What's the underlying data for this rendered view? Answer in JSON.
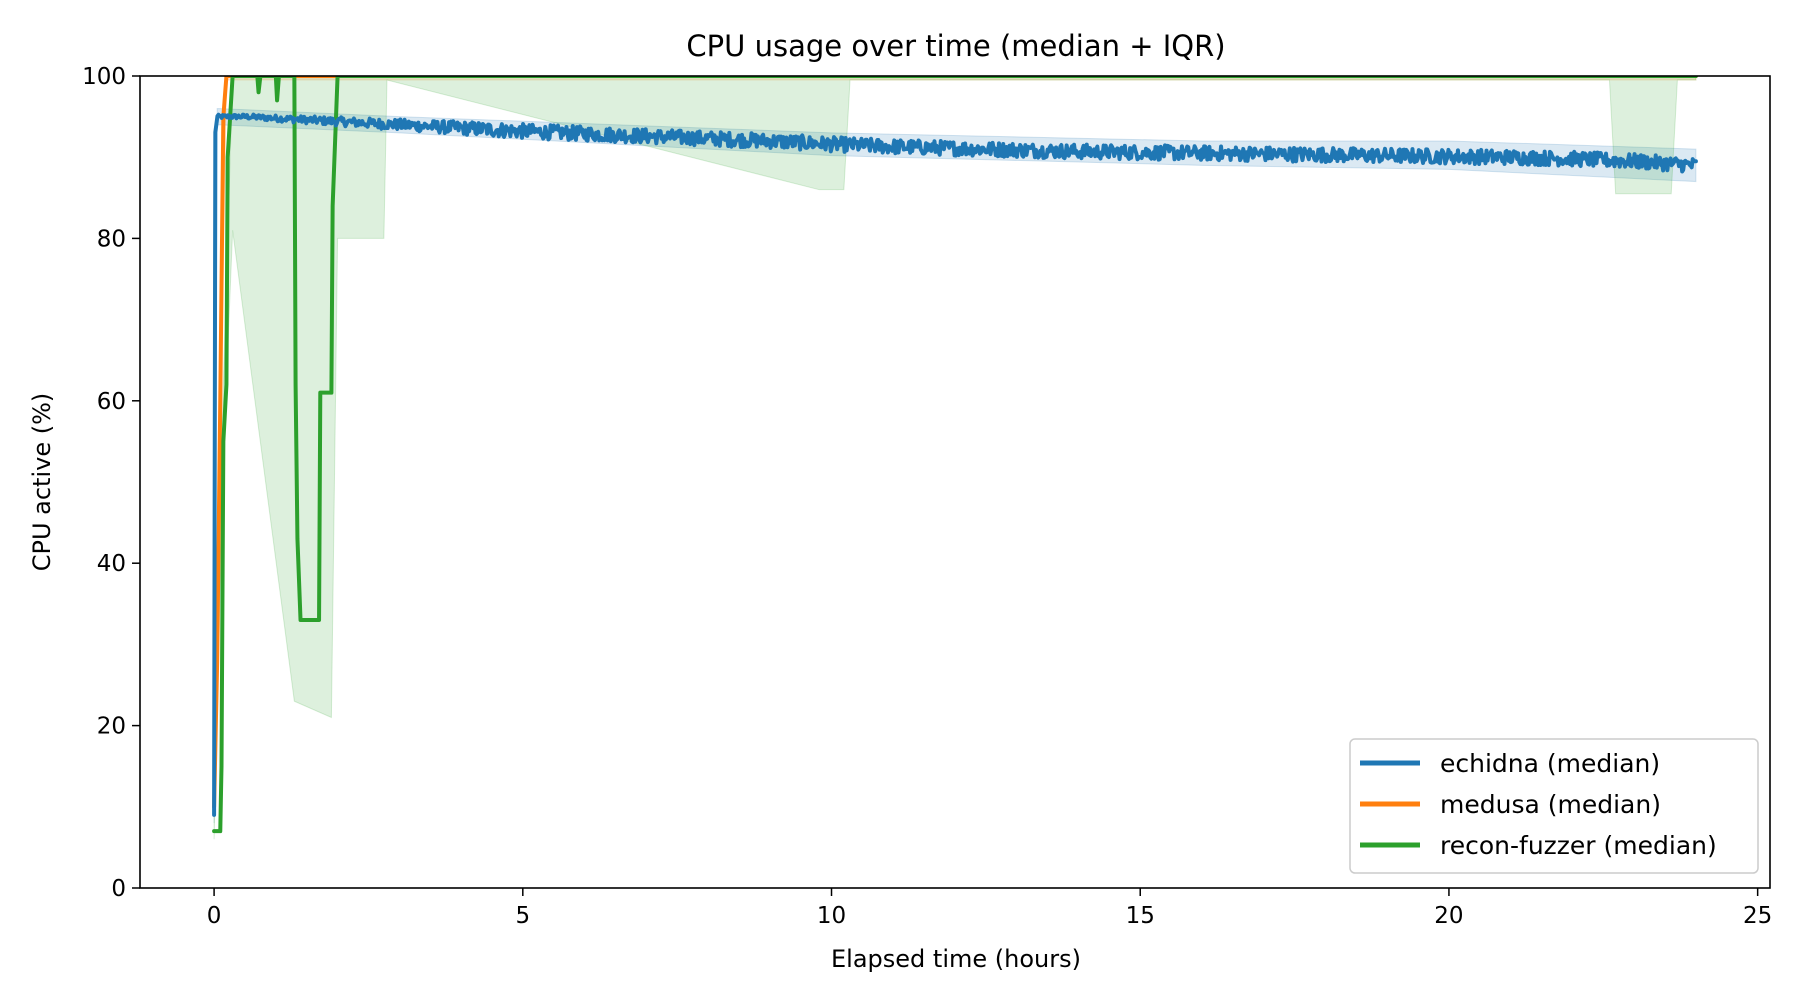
{
  "chart_data": {
    "type": "line",
    "title": "CPU usage over time (median + IQR)",
    "xlabel": "Elapsed time (hours)",
    "ylabel": "CPU active (%)",
    "xlim": [
      -1.2,
      25.2
    ],
    "ylim": [
      0,
      100
    ],
    "xticks": [
      0,
      5,
      10,
      15,
      20,
      25
    ],
    "yticks": [
      0,
      20,
      40,
      60,
      80,
      100
    ],
    "grid": false,
    "legend_position": "lower-right",
    "series": [
      {
        "name": "echidna (median)",
        "color": "#1f77b4",
        "median": [
          [
            0.0,
            9
          ],
          [
            0.02,
            93
          ],
          [
            0.05,
            95
          ],
          [
            0.5,
            95
          ],
          [
            1,
            94.8
          ],
          [
            2,
            94.4
          ],
          [
            3,
            94
          ],
          [
            4,
            93.6
          ],
          [
            5,
            93.2
          ],
          [
            6,
            92.9
          ],
          [
            7,
            92.6
          ],
          [
            8,
            92.3
          ],
          [
            9,
            92
          ],
          [
            10,
            91.6
          ],
          [
            11,
            91.3
          ],
          [
            12,
            91.1
          ],
          [
            13,
            90.9
          ],
          [
            14,
            90.7
          ],
          [
            15,
            90.6
          ],
          [
            16,
            90.5
          ],
          [
            17,
            90.4
          ],
          [
            18,
            90.3
          ],
          [
            19,
            90.2
          ],
          [
            20,
            90.1
          ],
          [
            21,
            90
          ],
          [
            22,
            89.8
          ],
          [
            23,
            89.5
          ],
          [
            24,
            89
          ]
        ],
        "noise": 0.9,
        "iqr": [
          [
            0.0,
            8,
            10
          ],
          [
            0.05,
            94,
            96
          ],
          [
            3,
            93,
            95
          ],
          [
            10,
            90.2,
            93
          ],
          [
            16,
            89,
            92
          ],
          [
            20,
            88.5,
            92
          ],
          [
            24,
            87,
            91
          ]
        ]
      },
      {
        "name": "medusa (median)",
        "color": "#ff7f0e",
        "median": [
          [
            0.0,
            10
          ],
          [
            0.05,
            28
          ],
          [
            0.1,
            60
          ],
          [
            0.15,
            95
          ],
          [
            0.2,
            100
          ],
          [
            24,
            100
          ]
        ],
        "iqr": [
          [
            0.0,
            9,
            12
          ],
          [
            0.1,
            55,
            65
          ],
          [
            0.2,
            99.5,
            100
          ],
          [
            24,
            99.5,
            100
          ]
        ]
      },
      {
        "name": "recon-fuzzer (median)",
        "color": "#2ca02c",
        "median": [
          [
            0.0,
            7
          ],
          [
            0.05,
            7
          ],
          [
            0.1,
            7
          ],
          [
            0.12,
            15
          ],
          [
            0.15,
            55
          ],
          [
            0.2,
            62
          ],
          [
            0.22,
            90
          ],
          [
            0.3,
            100
          ],
          [
            0.7,
            100
          ],
          [
            0.72,
            98
          ],
          [
            0.75,
            100
          ],
          [
            1.0,
            100
          ],
          [
            1.02,
            97
          ],
          [
            1.05,
            100
          ],
          [
            1.3,
            100
          ],
          [
            1.32,
            62
          ],
          [
            1.35,
            43
          ],
          [
            1.4,
            33
          ],
          [
            1.7,
            33
          ],
          [
            1.72,
            61
          ],
          [
            1.9,
            61
          ],
          [
            1.92,
            84
          ],
          [
            2.0,
            100
          ],
          [
            24,
            100
          ]
        ],
        "iqr": [
          [
            0.0,
            6,
            9
          ],
          [
            0.15,
            53,
            62
          ],
          [
            0.3,
            81,
            100
          ],
          [
            1.3,
            23,
            100
          ],
          [
            1.9,
            21,
            100
          ],
          [
            2.0,
            80,
            100
          ],
          [
            2.75,
            80,
            100
          ],
          [
            2.8,
            99.5,
            100
          ],
          [
            9.8,
            86,
            100
          ],
          [
            10.2,
            86,
            100
          ],
          [
            10.3,
            99.5,
            100
          ],
          [
            22.6,
            99.5,
            100
          ],
          [
            22.7,
            85.5,
            100
          ],
          [
            23.6,
            85.5,
            100
          ],
          [
            23.7,
            99.5,
            100
          ],
          [
            24,
            99.5,
            100
          ]
        ]
      }
    ]
  }
}
